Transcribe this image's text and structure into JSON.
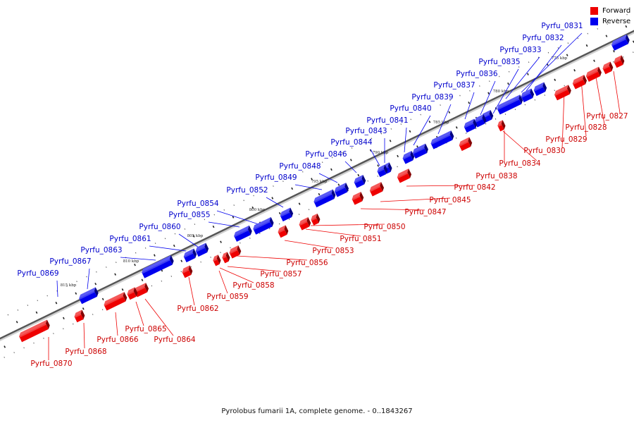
{
  "legend": {
    "forward_label": "Forward",
    "reverse_label": "Reverse",
    "forward_color": "#ee0000",
    "reverse_color": "#0000ee"
  },
  "caption": "Pyrolobus fumarii 1A, complete genome. - 0..1843267",
  "ticks": [
    "775 kbp",
    "780 kbp",
    "785 kbp",
    "790 kbp",
    "795 kbp",
    "800 kbp",
    "805 kbp",
    "810 kbp",
    "815 kbp"
  ],
  "genes": [
    {
      "id": "Pyrfu_0831",
      "strand": "reverse"
    },
    {
      "id": "Pyrfu_0832",
      "strand": "reverse"
    },
    {
      "id": "Pyrfu_0833",
      "strand": "reverse"
    },
    {
      "id": "Pyrfu_0835",
      "strand": "reverse"
    },
    {
      "id": "Pyrfu_0836",
      "strand": "reverse"
    },
    {
      "id": "Pyrfu_0837",
      "strand": "reverse"
    },
    {
      "id": "Pyrfu_0839",
      "strand": "reverse"
    },
    {
      "id": "Pyrfu_0840",
      "strand": "reverse"
    },
    {
      "id": "Pyrfu_0841",
      "strand": "reverse"
    },
    {
      "id": "Pyrfu_0843",
      "strand": "reverse"
    },
    {
      "id": "Pyrfu_0844",
      "strand": "reverse"
    },
    {
      "id": "Pyrfu_0846",
      "strand": "reverse"
    },
    {
      "id": "Pyrfu_0848",
      "strand": "reverse"
    },
    {
      "id": "Pyrfu_0849",
      "strand": "reverse"
    },
    {
      "id": "Pyrfu_0852",
      "strand": "reverse"
    },
    {
      "id": "Pyrfu_0854",
      "strand": "reverse"
    },
    {
      "id": "Pyrfu_0855",
      "strand": "reverse"
    },
    {
      "id": "Pyrfu_0860",
      "strand": "reverse"
    },
    {
      "id": "Pyrfu_0861",
      "strand": "reverse"
    },
    {
      "id": "Pyrfu_0863",
      "strand": "reverse"
    },
    {
      "id": "Pyrfu_0867",
      "strand": "reverse"
    },
    {
      "id": "Pyrfu_0869",
      "strand": "reverse"
    },
    {
      "id": "Pyrfu_0827",
      "strand": "forward"
    },
    {
      "id": "Pyrfu_0828",
      "strand": "forward"
    },
    {
      "id": "Pyrfu_0829",
      "strand": "forward"
    },
    {
      "id": "Pyrfu_0830",
      "strand": "forward"
    },
    {
      "id": "Pyrfu_0834",
      "strand": "forward"
    },
    {
      "id": "Pyrfu_0838",
      "strand": "forward"
    },
    {
      "id": "Pyrfu_0842",
      "strand": "forward"
    },
    {
      "id": "Pyrfu_0845",
      "strand": "forward"
    },
    {
      "id": "Pyrfu_0847",
      "strand": "forward"
    },
    {
      "id": "Pyrfu_0850",
      "strand": "forward"
    },
    {
      "id": "Pyrfu_0851",
      "strand": "forward"
    },
    {
      "id": "Pyrfu_0853",
      "strand": "forward"
    },
    {
      "id": "Pyrfu_0856",
      "strand": "forward"
    },
    {
      "id": "Pyrfu_0857",
      "strand": "forward"
    },
    {
      "id": "Pyrfu_0858",
      "strand": "forward"
    },
    {
      "id": "Pyrfu_0859",
      "strand": "forward"
    },
    {
      "id": "Pyrfu_0862",
      "strand": "forward"
    },
    {
      "id": "Pyrfu_0864",
      "strand": "forward"
    },
    {
      "id": "Pyrfu_0865",
      "strand": "forward"
    },
    {
      "id": "Pyrfu_0866",
      "strand": "forward"
    },
    {
      "id": "Pyrfu_0868",
      "strand": "forward"
    },
    {
      "id": "Pyrfu_0870",
      "strand": "forward"
    }
  ]
}
